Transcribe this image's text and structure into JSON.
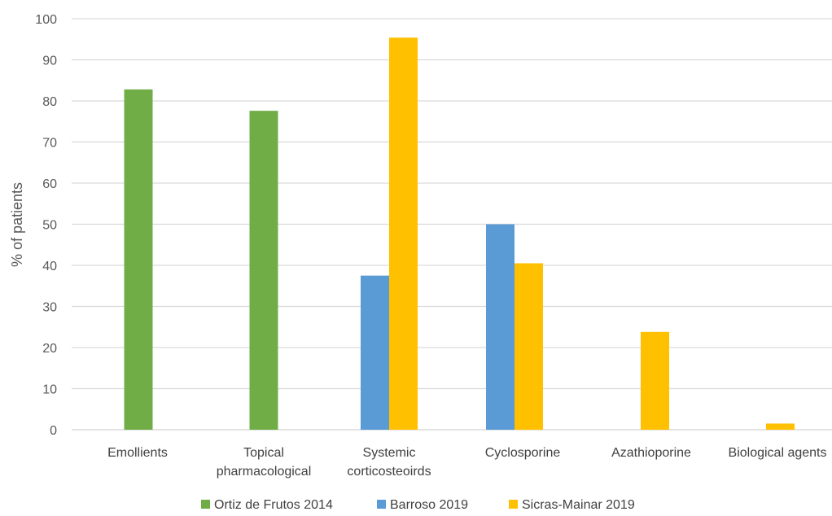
{
  "chart_data": {
    "type": "bar",
    "title": "",
    "xlabel": "",
    "ylabel": "% of patients",
    "ylim": [
      0,
      100
    ],
    "yticks": [
      0,
      10,
      20,
      30,
      40,
      50,
      60,
      70,
      80,
      90,
      100
    ],
    "grid": true,
    "legend_position": "bottom",
    "categories": [
      [
        "Emollients"
      ],
      [
        "Topical",
        "pharmacological"
      ],
      [
        "Systemic",
        "corticosteoirds"
      ],
      [
        "Cyclosporine"
      ],
      [
        "Azathioporine"
      ],
      [
        "Biological agents"
      ]
    ],
    "series": [
      {
        "name": "Ortiz de Frutos 2014",
        "color": "#70AD47",
        "values": [
          82.8,
          77.6,
          null,
          null,
          null,
          null
        ]
      },
      {
        "name": "Barroso 2019",
        "color": "#5B9BD5",
        "values": [
          null,
          null,
          37.5,
          50.0,
          null,
          null
        ]
      },
      {
        "name": "Sicras-Mainar 2019",
        "color": "#FFC000",
        "values": [
          null,
          null,
          95.4,
          40.5,
          23.8,
          1.5
        ]
      }
    ],
    "gridline_color": "#D9D9D9"
  }
}
